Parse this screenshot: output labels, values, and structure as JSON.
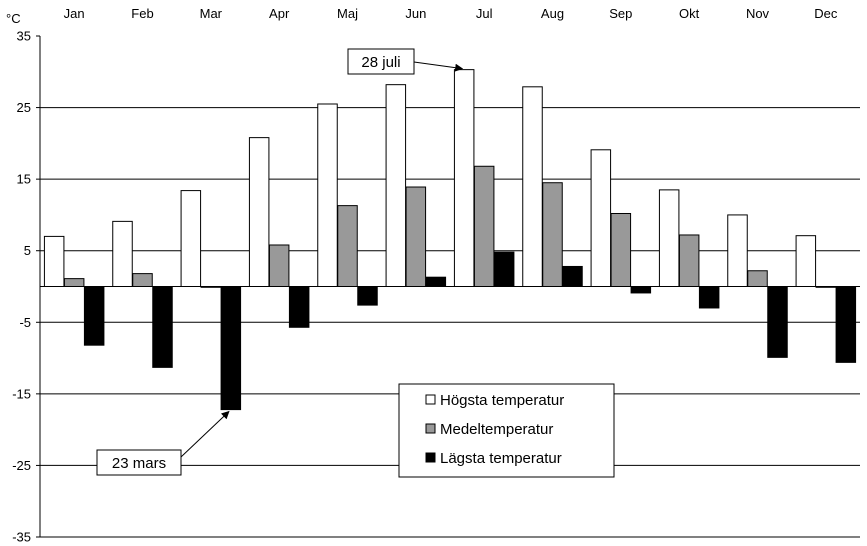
{
  "chart_data": {
    "type": "bar",
    "unit_label": "°C",
    "categories": [
      "Jan",
      "Feb",
      "Mar",
      "Apr",
      "Maj",
      "Jun",
      "Jul",
      "Aug",
      "Sep",
      "Okt",
      "Nov",
      "Dec"
    ],
    "ylim": [
      -35,
      35
    ],
    "yticks": [
      35,
      25,
      15,
      5,
      -5,
      -15,
      -25,
      -35
    ],
    "grid": true,
    "series": [
      {
        "name": "Högsta temperatur",
        "color": "#ffffff",
        "values": [
          7.0,
          9.1,
          13.4,
          20.8,
          25.5,
          28.2,
          30.3,
          27.9,
          19.1,
          13.5,
          10.0,
          7.1
        ]
      },
      {
        "name": "Medeltemperatur",
        "color": "#999999",
        "values": [
          1.1,
          1.8,
          -0.1,
          5.8,
          11.3,
          13.9,
          16.8,
          14.5,
          10.2,
          7.2,
          2.2,
          0.0
        ]
      },
      {
        "name": "Lägsta temperatur",
        "color": "#000000",
        "values": [
          -8.2,
          -11.3,
          -17.2,
          -5.7,
          -2.6,
          1.3,
          4.8,
          2.8,
          -0.9,
          -3.0,
          -9.9,
          -10.6
        ]
      }
    ],
    "annotations": [
      {
        "text": "28 juli",
        "month_index": 6,
        "series_index": 0
      },
      {
        "text": "23 mars",
        "month_index": 2,
        "series_index": 2
      }
    ]
  }
}
